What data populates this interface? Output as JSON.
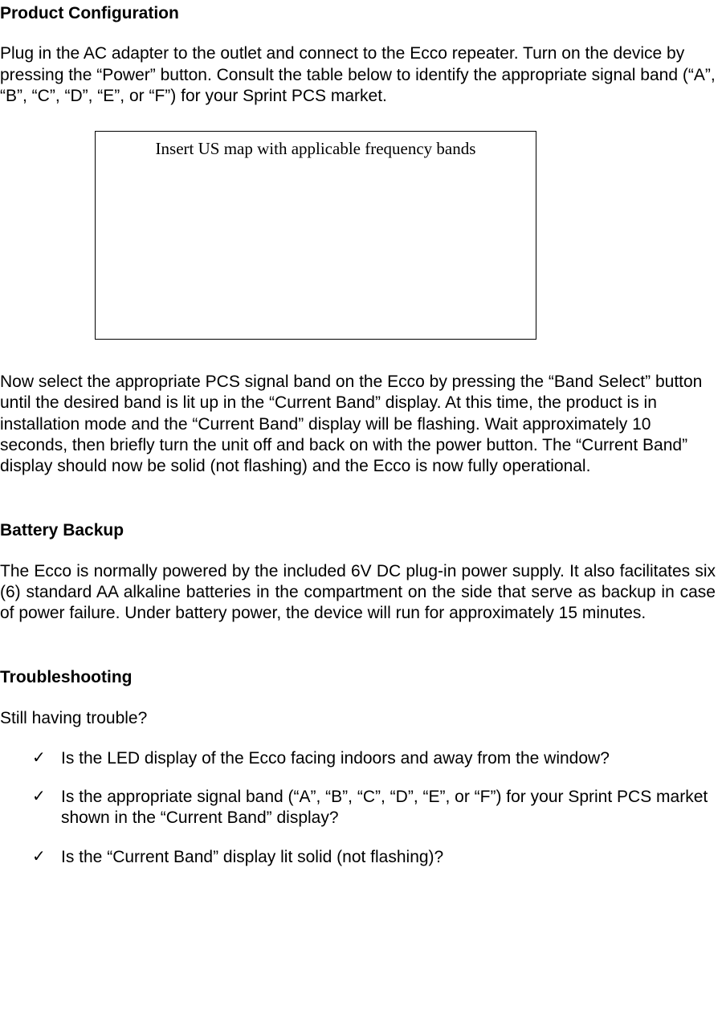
{
  "section1": {
    "heading": "Product Configuration",
    "para1": "Plug in the AC adapter to the outlet and connect to the Ecco repeater.  Turn on the device by pressing the “Power” button.  Consult the table below to identify the appropriate signal band (“A”, “B”, “C”, “D”, “E”,  or “F”) for your Sprint PCS market.",
    "placeholder": "Insert US map with applicable frequency bands",
    "para2": "Now select the appropriate PCS signal band on the Ecco by pressing the “Band Select” button until the desired band is lit up in the “Current Band” display.  At this time, the product is in installation mode and the “Current Band” display will be flashing.  Wait approximately 10 seconds, then briefly turn the unit off and back on with the power button.  The “Current Band” display should now be solid (not flashing) and the Ecco is now fully operational."
  },
  "section2": {
    "heading": "Battery Backup",
    "para1": "The Ecco is normally powered by the included 6V DC plug-in power supply.  It also facilitates six (6) standard AA alkaline batteries in the compartment on the side that serve as backup in case of power failure. Under battery power, the device will run for approximately 15 minutes."
  },
  "section3": {
    "heading": "Troubleshooting",
    "intro": "Still having trouble?",
    "items": [
      "Is the LED display of the Ecco facing indoors and away from the window?",
      "Is the appropriate signal band (“A”, “B”, “C”, “D”, “E”,  or “F”) for your Sprint PCS market shown in the “Current Band” display?",
      "Is the “Current Band” display lit solid (not flashing)?"
    ]
  }
}
